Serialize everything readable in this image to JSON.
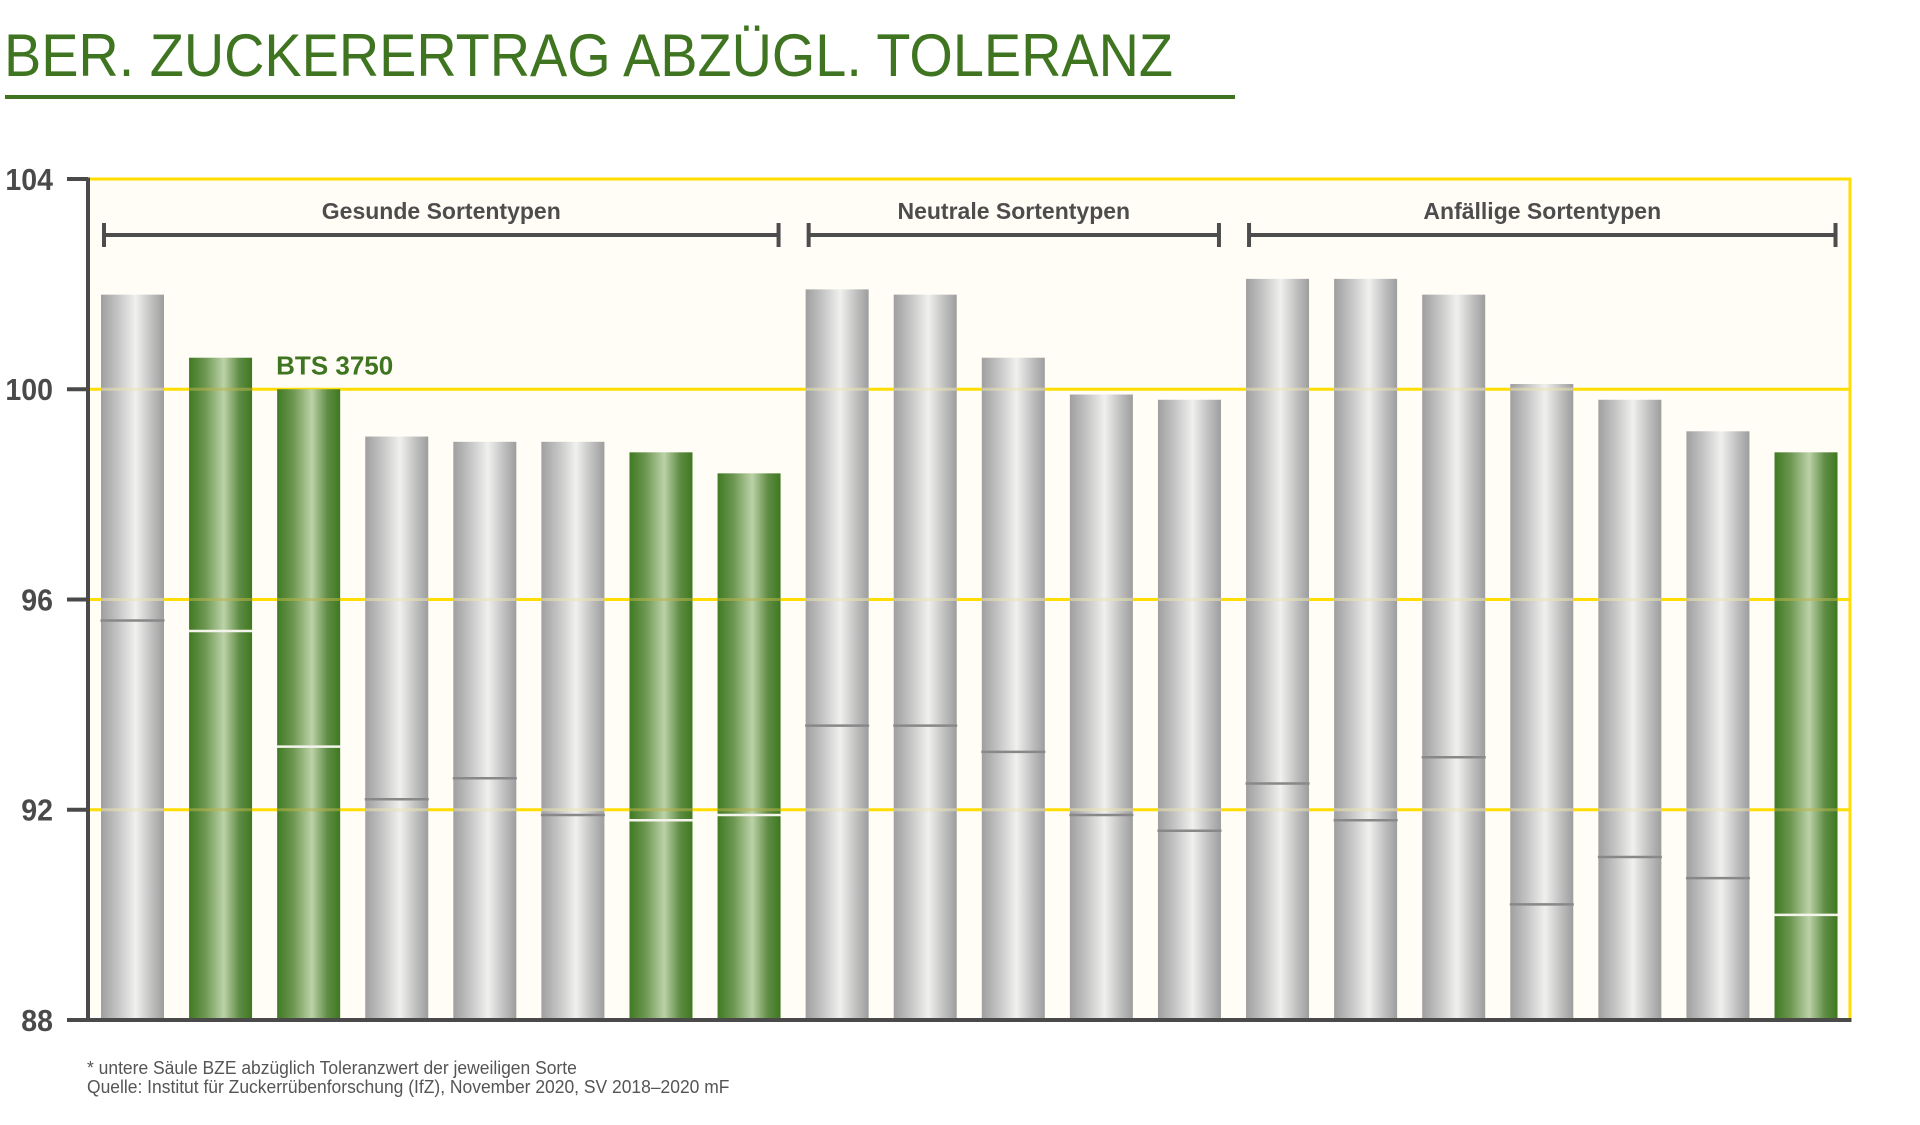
{
  "title": "BER. ZUCKERERTRAG ABZÜGL. TOLERANZ",
  "colors": {
    "title": "#3f7520",
    "grid": "#ffdd00",
    "axis": "#4a4a4a",
    "plot_background": "#fffdf6",
    "bar_green_dark": "#3f7a22",
    "bar_green_light": "#bcd2a8",
    "bar_gray_dark": "#9f9f9f",
    "bar_gray_light": "#f0f0ee"
  },
  "chart_data": {
    "type": "bar",
    "title": "BER. ZUCKERERTRAG ABZÜGL. TOLERANZ",
    "xlabel": "",
    "ylabel": "",
    "ylim": [
      88,
      104
    ],
    "yticks": [
      "88",
      "92",
      "96",
      "100",
      "104"
    ],
    "grid": true,
    "groups": [
      {
        "label": "Gesunde Sortentypen",
        "first_bar": 0,
        "last_bar": 7
      },
      {
        "label": "Neutrale Sortentypen",
        "first_bar": 8,
        "last_bar": 12
      },
      {
        "label": "Anfällige Sortentypen",
        "first_bar": 13,
        "last_bar": 19
      }
    ],
    "highlight": {
      "bar": 2,
      "label": "BTS 3750"
    },
    "series": [
      {
        "name": "BZE",
        "values": [
          101.8,
          100.6,
          100.0,
          99.1,
          99.0,
          99.0,
          98.8,
          98.4,
          101.9,
          101.8,
          100.6,
          99.9,
          99.8,
          102.1,
          102.1,
          101.8,
          100.1,
          99.8,
          99.2,
          98.8
        ]
      },
      {
        "name": "BZE abzüglich Toleranzwert",
        "values": [
          95.6,
          95.4,
          93.2,
          92.2,
          92.6,
          91.9,
          91.8,
          91.9,
          93.6,
          93.6,
          93.1,
          91.9,
          91.6,
          92.5,
          91.8,
          93.0,
          90.2,
          91.1,
          90.7,
          90.0
        ]
      }
    ],
    "bar_colors": [
      "gray",
      "green",
      "green",
      "gray",
      "gray",
      "gray",
      "green",
      "green",
      "gray",
      "gray",
      "gray",
      "gray",
      "gray",
      "gray",
      "gray",
      "gray",
      "gray",
      "gray",
      "gray",
      "green"
    ]
  },
  "footnote": {
    "line1": "* untere Säule BZE abzüglich Toleranzwert der jeweiligen Sorte",
    "line2": "Quelle: Institut für Zuckerrübenforschung (IfZ), November 2020, SV 2018–2020 mF"
  }
}
